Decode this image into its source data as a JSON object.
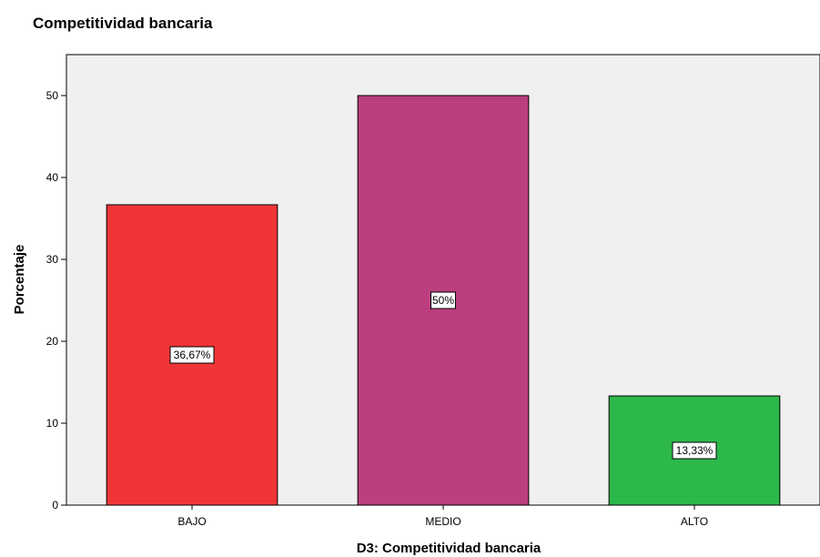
{
  "chart_data": {
    "type": "bar",
    "title": "Competitividad bancaria",
    "xlabel": "D3: Competitividad bancaria",
    "ylabel": "Porcentaje",
    "categories": [
      "BAJO",
      "MEDIO",
      "ALTO"
    ],
    "values": [
      36.67,
      50,
      13.33
    ],
    "data_labels": [
      "36,67%",
      "50%",
      "13,33%"
    ],
    "colors": [
      "#f03539",
      "#bb3e7e",
      "#2db84a"
    ],
    "ylim": [
      0,
      55
    ],
    "yticks": [
      0,
      10,
      20,
      30,
      40,
      50
    ],
    "ytick_labels": [
      "0",
      "10",
      "20",
      "30",
      "40",
      "50"
    ],
    "plot_background": "#f0f0f0",
    "grid": false
  }
}
